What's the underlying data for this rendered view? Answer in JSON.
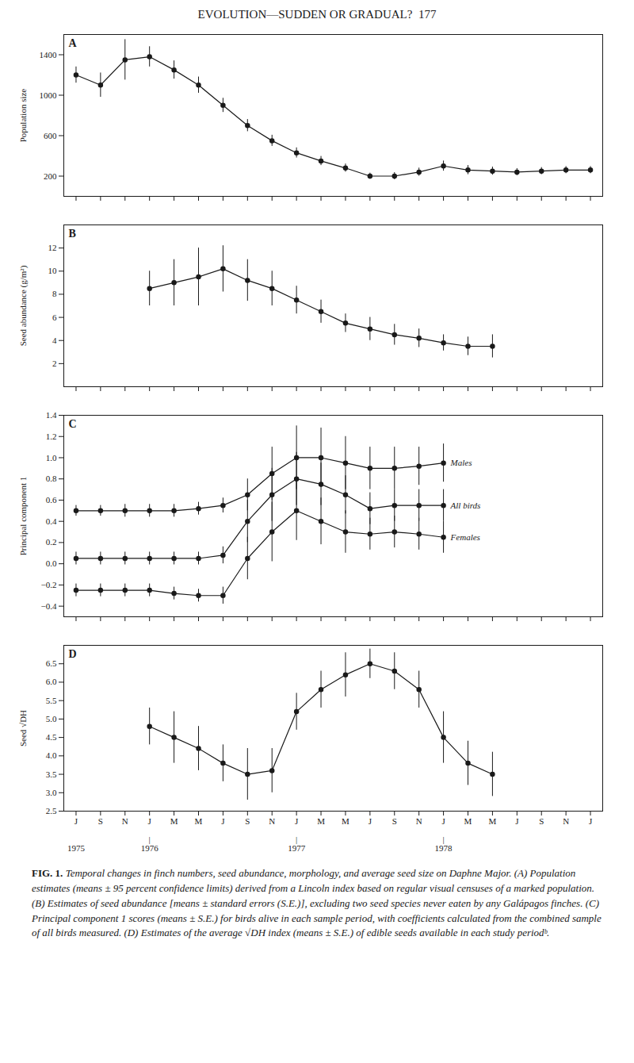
{
  "title": "EVOLUTION—SUDDEN OR GRADUAL?  177",
  "caption": {
    "label": "FIG. 1.",
    "text": " Temporal changes in finch numbers, seed abundance, morphology, and average seed size on Daphne Major. (A) Population estimates (means ± 95 percent confidence limits) derived from a Lincoln index based on regular visual censuses of a marked population. (B) Estimates of seed abundance [means ± standard errors (S.E.)], excluding two seed species never eaten by any Galápagos finches. (C) Principal component 1 scores (means ± S.E.) for birds alive in each sample period, with coefficients calculated from the combined sample of all birds measured. (D) Estimates of the average √DH index (means ± S.E.) of edible seeds available in each study periodᵇ."
  },
  "chart_data": [
    {
      "type": "line",
      "title": "A",
      "ylabel": "Population size",
      "color": "#1a1a1a",
      "marker": "circle",
      "tick_labels": "y",
      "xlim": [
        -0.5,
        21.5
      ],
      "xticks": [
        0,
        1,
        2,
        3,
        4,
        5,
        6,
        7,
        8,
        9,
        10,
        11,
        12,
        13,
        14,
        15,
        16,
        17,
        18,
        19,
        20,
        21
      ],
      "ylim": [
        0,
        1600
      ],
      "yticks": [
        200,
        600,
        1000,
        1400
      ],
      "x": [
        0,
        1,
        2,
        3,
        4,
        5,
        6,
        7,
        8,
        9,
        10,
        11,
        12,
        13,
        14,
        15,
        16,
        17,
        18,
        19,
        20,
        21
      ],
      "values": [
        1200,
        1100,
        1350,
        1380,
        1250,
        1100,
        900,
        700,
        550,
        430,
        350,
        280,
        200,
        200,
        240,
        300,
        260,
        250,
        240,
        250,
        260,
        260
      ],
      "yerr": [
        80,
        120,
        200,
        100,
        90,
        80,
        70,
        60,
        55,
        50,
        45,
        40,
        30,
        35,
        40,
        50,
        45,
        40,
        35,
        35,
        35,
        35
      ]
    },
    {
      "type": "line",
      "title": "B",
      "ylabel": "Seed abundance (g/m²)",
      "color": "#1a1a1a",
      "marker": "circle",
      "tick_labels": "y",
      "xlim": [
        -0.5,
        21.5
      ],
      "xticks": [
        0,
        1,
        2,
        3,
        4,
        5,
        6,
        7,
        8,
        9,
        10,
        11,
        12,
        13,
        14,
        15,
        16,
        17,
        18,
        19,
        20,
        21
      ],
      "ylim": [
        0,
        14
      ],
      "yticks": [
        2,
        4,
        6,
        8,
        10,
        12
      ],
      "x": [
        3,
        4,
        5,
        6,
        7,
        8,
        9,
        10,
        11,
        12,
        13,
        14,
        15,
        16,
        17
      ],
      "values": [
        8.5,
        9.0,
        9.5,
        10.2,
        9.2,
        8.5,
        7.5,
        6.5,
        5.5,
        5.0,
        4.5,
        4.2,
        3.8,
        3.5,
        3.5
      ],
      "yerr": [
        1.5,
        2.0,
        2.5,
        2.0,
        1.8,
        1.5,
        1.2,
        1.0,
        0.8,
        1.0,
        0.9,
        0.8,
        0.7,
        0.8,
        1.0
      ]
    },
    {
      "type": "line",
      "title": "C",
      "ylabel": "Principal component 1",
      "color": "#1a1a1a",
      "marker": "circle",
      "tick_labels": "y",
      "xlim": [
        -0.5,
        21.5
      ],
      "xticks": [
        0,
        1,
        2,
        3,
        4,
        5,
        6,
        7,
        8,
        9,
        10,
        11,
        12,
        13,
        14,
        15,
        16,
        17,
        18,
        19,
        20,
        21
      ],
      "ylim": [
        -0.5,
        1.4
      ],
      "yticks": [
        {
          "value": -0.4,
          "label": "−0.4"
        },
        {
          "value": -0.2,
          "label": "−0.2"
        },
        {
          "value": 0,
          "label": "0.0"
        },
        0.2,
        0.4,
        0.6,
        0.8,
        {
          "value": 1,
          "label": "1.0"
        },
        1.2,
        1.4
      ],
      "x": [
        0,
        1,
        2,
        3,
        4,
        5,
        6,
        7,
        8,
        9,
        10,
        11,
        12,
        13,
        14,
        15
      ],
      "series": [
        {
          "name": "Males",
          "values": [
            0.5,
            0.5,
            0.5,
            0.5,
            0.5,
            0.52,
            0.55,
            0.65,
            0.85,
            1.0,
            1.0,
            0.95,
            0.9,
            0.9,
            0.92,
            0.95
          ],
          "yerr": [
            0.05,
            0.05,
            0.06,
            0.06,
            0.06,
            0.06,
            0.07,
            0.15,
            0.25,
            0.3,
            0.28,
            0.25,
            0.2,
            0.2,
            0.18,
            0.18
          ]
        },
        {
          "name": "All birds",
          "values": [
            0.05,
            0.05,
            0.05,
            0.05,
            0.05,
            0.05,
            0.08,
            0.4,
            0.65,
            0.8,
            0.75,
            0.65,
            0.52,
            0.55,
            0.55,
            0.55
          ],
          "yerr": [
            0.06,
            0.06,
            0.06,
            0.06,
            0.06,
            0.06,
            0.08,
            0.2,
            0.25,
            0.25,
            0.2,
            0.18,
            0.15,
            0.15,
            0.15,
            0.15
          ]
        },
        {
          "name": "Females",
          "values": [
            -0.25,
            -0.25,
            -0.25,
            -0.25,
            -0.28,
            -0.3,
            -0.3,
            0.05,
            0.3,
            0.5,
            0.4,
            0.3,
            0.28,
            0.3,
            0.28,
            0.25
          ],
          "yerr": [
            0.06,
            0.06,
            0.06,
            0.06,
            0.06,
            0.06,
            0.08,
            0.2,
            0.28,
            0.28,
            0.22,
            0.2,
            0.15,
            0.15,
            0.15,
            0.15
          ]
        }
      ]
    },
    {
      "type": "line",
      "title": "D",
      "ylabel": "Seed √DH",
      "color": "#1a1a1a",
      "marker": "circle",
      "xlim": [
        -0.5,
        21.5
      ],
      "xticks": [
        {
          "value": 0,
          "label": "J"
        },
        {
          "value": 1,
          "label": "S"
        },
        {
          "value": 2,
          "label": "N"
        },
        {
          "value": 3,
          "label": "J"
        },
        {
          "value": 4,
          "label": "M"
        },
        {
          "value": 5,
          "label": "M"
        },
        {
          "value": 6,
          "label": "J"
        },
        {
          "value": 7,
          "label": "S"
        },
        {
          "value": 8,
          "label": "N"
        },
        {
          "value": 9,
          "label": "J"
        },
        {
          "value": 10,
          "label": "M"
        },
        {
          "value": 11,
          "label": "M"
        },
        {
          "value": 12,
          "label": "J"
        },
        {
          "value": 13,
          "label": "S"
        },
        {
          "value": 14,
          "label": "N"
        },
        {
          "value": 15,
          "label": "J"
        },
        {
          "value": 16,
          "label": "M"
        },
        {
          "value": 17,
          "label": "M"
        },
        {
          "value": 18,
          "label": "J"
        },
        {
          "value": 19,
          "label": "S"
        },
        {
          "value": 20,
          "label": "N"
        },
        {
          "value": 21,
          "label": "J"
        }
      ],
      "ylim": [
        2.5,
        7.0
      ],
      "yticks": [
        2.5,
        {
          "value": 3,
          "label": "3.0"
        },
        3.5,
        {
          "value": 4,
          "label": "4.0"
        },
        4.5,
        {
          "value": 5,
          "label": "5.0"
        },
        5.5,
        {
          "value": 6,
          "label": "6.0"
        },
        6.5
      ],
      "x": [
        3,
        4,
        5,
        6,
        7,
        8,
        9,
        10,
        11,
        12,
        13,
        14,
        15,
        16,
        17
      ],
      "values": [
        4.8,
        4.5,
        4.2,
        3.8,
        3.5,
        3.6,
        5.2,
        5.8,
        6.2,
        6.5,
        6.3,
        5.8,
        4.5,
        3.8,
        3.5
      ],
      "yerr": [
        0.5,
        0.7,
        0.6,
        0.5,
        0.7,
        0.6,
        0.5,
        0.5,
        0.6,
        0.4,
        0.5,
        0.5,
        0.7,
        0.6,
        0.6
      ],
      "annotations": [
        {
          "text": "1975",
          "x": 0
        },
        {
          "text": "|",
          "x": 3
        },
        {
          "text": "1976",
          "x": 3
        },
        {
          "text": "|",
          "x": 9
        },
        {
          "text": "1977",
          "x": 9
        },
        {
          "text": "|",
          "x": 15
        },
        {
          "text": "1978",
          "x": 15
        }
      ]
    }
  ]
}
